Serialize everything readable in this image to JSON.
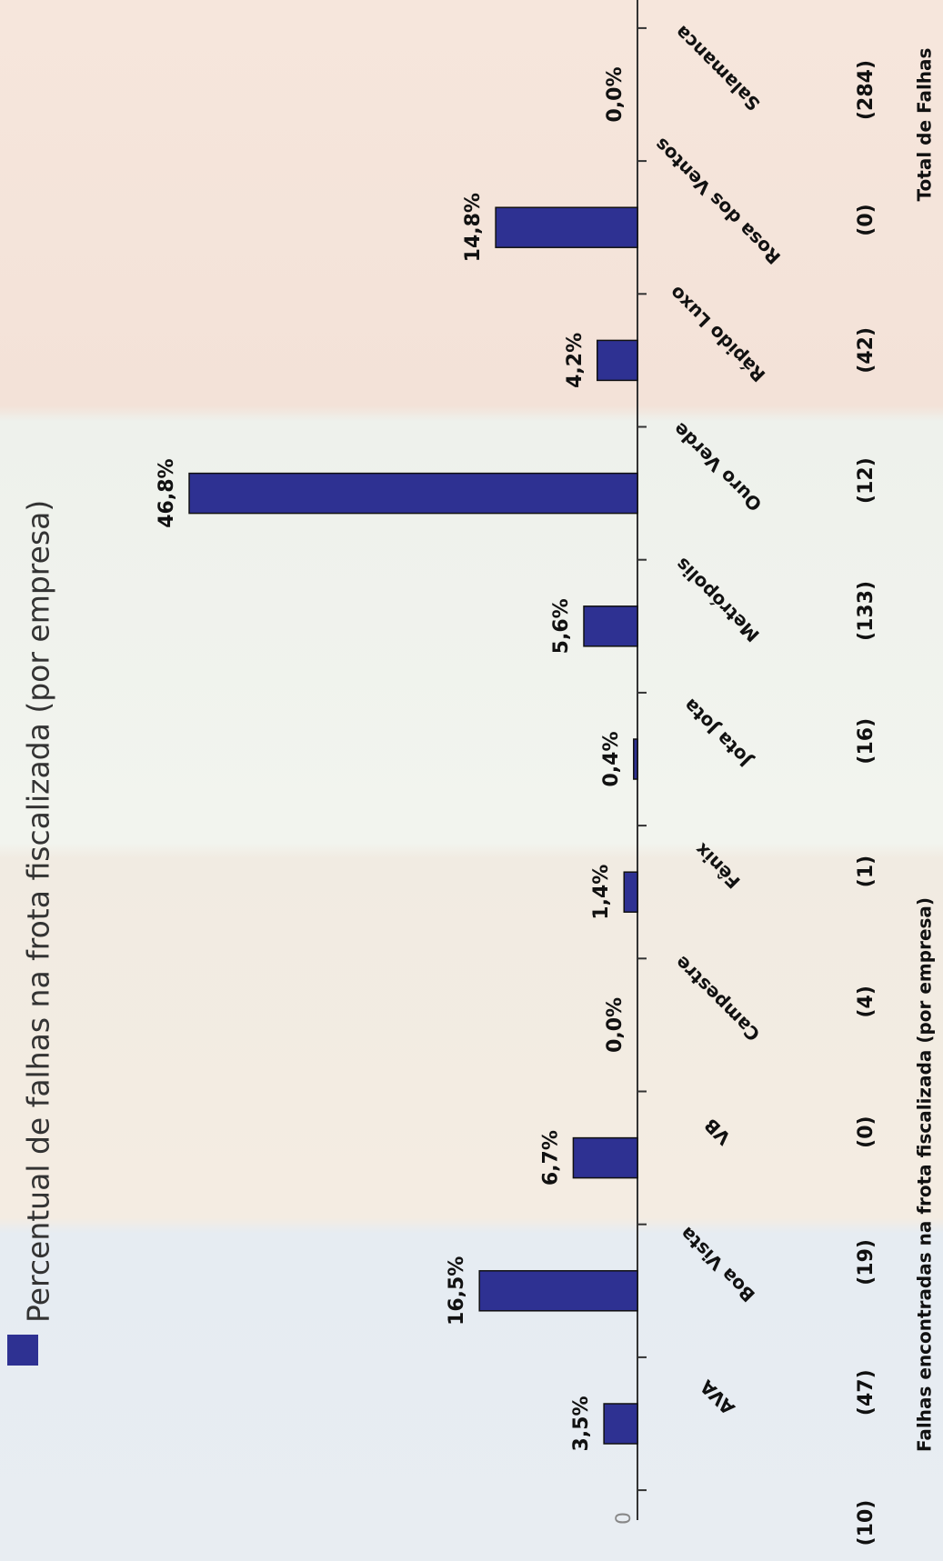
{
  "chart_data": {
    "type": "bar",
    "subtitle": "Falhas encontradas na frota fiscalizada (por empresa)",
    "categories": [
      "AVA",
      "Boa Vista",
      "VB",
      "Campestre",
      "Fênix",
      "Jota Jota",
      "Metrópolis",
      "Ouro Verde",
      "Rápido Luxo",
      "Rosa dos Ventos",
      "Salamanca"
    ],
    "series": [
      {
        "name": "Percentual de falhas na frota fiscalizada (por empresa)",
        "color": "#2e3192",
        "values": [
          3.5,
          16.5,
          6.7,
          0.0,
          1.4,
          0.4,
          5.6,
          46.8,
          4.2,
          14.8,
          0.0
        ],
        "value_labels": [
          "3,5%",
          "16,5%",
          "6,7%",
          "0,0%",
          "1,4%",
          "0,4%",
          "5,6%",
          "46,8%",
          "4,2%",
          "14,8%",
          "0,0%"
        ]
      }
    ],
    "counts": [
      "(10)",
      "(47)",
      "(19)",
      "(0)",
      "(4)",
      "(1)",
      "(16)",
      "(133)",
      "(12)",
      "(42)",
      "(0)"
    ],
    "total_label": "Total de Falhas",
    "total_count": "(284)",
    "ylim": [
      0,
      60
    ],
    "yticks": [
      0
    ]
  }
}
